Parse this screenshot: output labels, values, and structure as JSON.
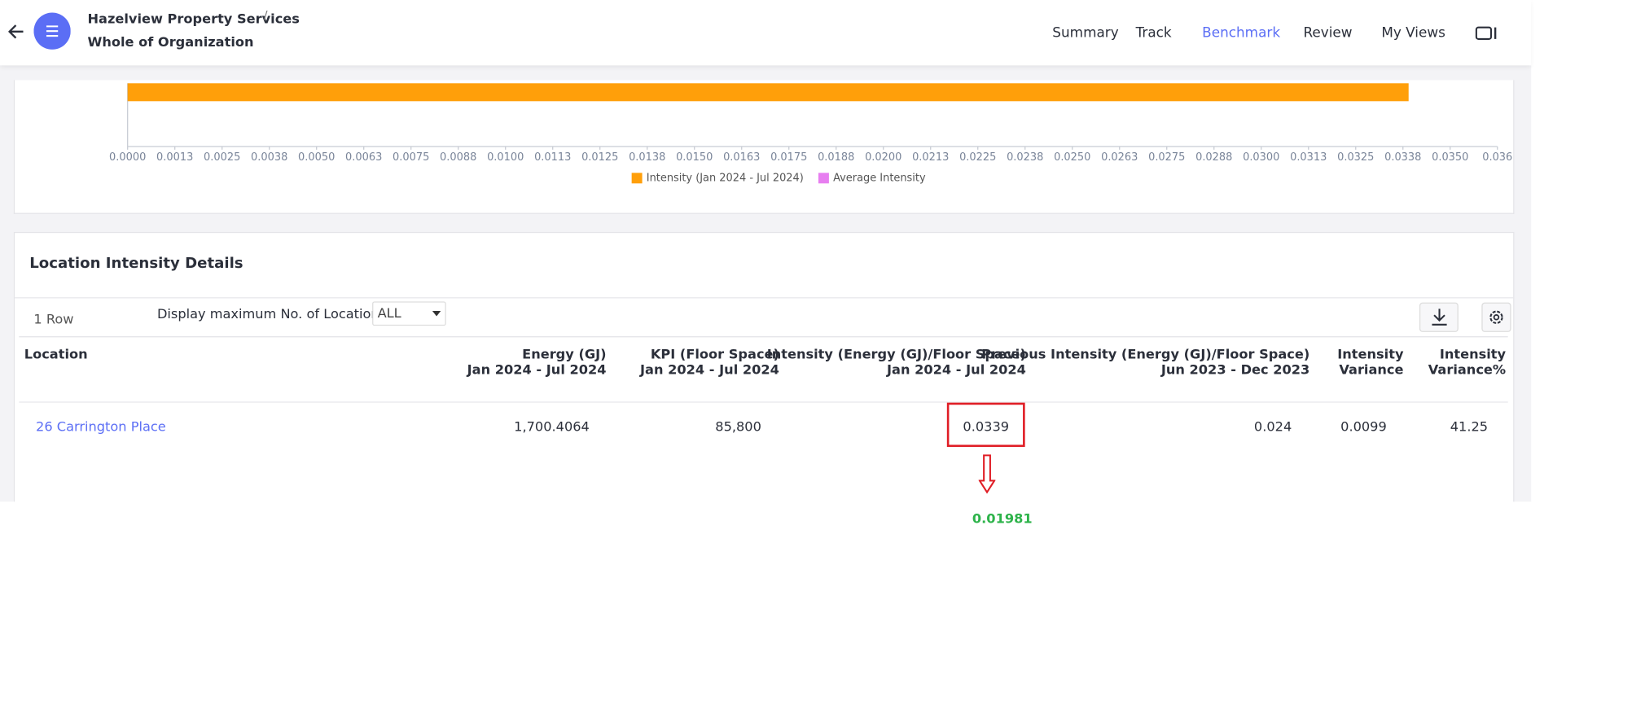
{
  "header": {
    "organization": "Hazelview Property Services",
    "separator": "/",
    "scope": "Whole of Organization"
  },
  "nav": [
    "Summary",
    "Track",
    "Benchmark",
    "Review",
    "My Views"
  ],
  "chart_data": {
    "type": "bar",
    "orientation": "horizontal",
    "categories": [
      null
    ],
    "series": [
      {
        "name": "Intensity (Jan 2024 - Jul 2024)",
        "color": "#ff9f0a",
        "values": [
          0.0339
        ]
      },
      {
        "name": "Average Intensity",
        "color": "#e77ef0",
        "values": [
          null
        ]
      }
    ],
    "xlim": [
      0,
      0.03625
    ],
    "xticks": [
      {
        "value": 0,
        "label": "0.0000"
      },
      {
        "value": 0.00125,
        "label": "0.0013"
      },
      {
        "value": 0.0025,
        "label": "0.0025"
      },
      {
        "value": 0.00375,
        "label": "0.0038"
      },
      {
        "value": 0.005,
        "label": "0.0050"
      },
      {
        "value": 0.00625,
        "label": "0.0063"
      },
      {
        "value": 0.0075,
        "label": "0.0075"
      },
      {
        "value": 0.00875,
        "label": "0.0088"
      },
      {
        "value": 0.01,
        "label": "0.0100"
      },
      {
        "value": 0.01125,
        "label": "0.0113"
      },
      {
        "value": 0.0125,
        "label": "0.0125"
      },
      {
        "value": 0.01375,
        "label": "0.0138"
      },
      {
        "value": 0.015,
        "label": "0.0150"
      },
      {
        "value": 0.01625,
        "label": "0.0163"
      },
      {
        "value": 0.0175,
        "label": "0.0175"
      },
      {
        "value": 0.01875,
        "label": "0.0188"
      },
      {
        "value": 0.02,
        "label": "0.0200"
      },
      {
        "value": 0.02125,
        "label": "0.0213"
      },
      {
        "value": 0.0225,
        "label": "0.0225"
      },
      {
        "value": 0.02375,
        "label": "0.0238"
      },
      {
        "value": 0.025,
        "label": "0.0250"
      },
      {
        "value": 0.02625,
        "label": "0.0263"
      },
      {
        "value": 0.0275,
        "label": "0.0275"
      },
      {
        "value": 0.02875,
        "label": "0.0288"
      },
      {
        "value": 0.03,
        "label": "0.0300"
      },
      {
        "value": 0.03125,
        "label": "0.0313"
      },
      {
        "value": 0.0325,
        "label": "0.0325"
      },
      {
        "value": 0.03375,
        "label": "0.0338"
      },
      {
        "value": 0.035,
        "label": "0.0350"
      },
      {
        "value": 0.03625,
        "label": "0.036"
      }
    ],
    "grid": false,
    "legend": "bottom"
  },
  "table_section": {
    "title": "Location Intensity Details",
    "row_count": "1 Row",
    "max_label": "Display maximum No. of Locations:",
    "max_value": "ALL"
  },
  "table": {
    "columns": [
      [
        "Location"
      ],
      [
        "Energy (GJ)",
        "Jan 2024 - Jul 2024"
      ],
      [
        "KPI (Floor Space)",
        "Jan 2024 - Jul 2024"
      ],
      [
        "Intensity (Energy (GJ)/Floor Space)",
        "Jan 2024 - Jul 2024"
      ],
      [
        "Previous Intensity (Energy (GJ)/Floor Space)",
        "Jun 2023 - Dec 2023"
      ],
      [
        "Intensity",
        "Variance"
      ],
      [
        "Intensity",
        "Variance%"
      ]
    ],
    "rows": [
      [
        "26 Carrington Place",
        "1,700.4064",
        "85,800",
        "0.0339",
        "0.024",
        "0.0099",
        "41.25"
      ]
    ]
  },
  "annotation": {
    "text": "0.01981"
  }
}
